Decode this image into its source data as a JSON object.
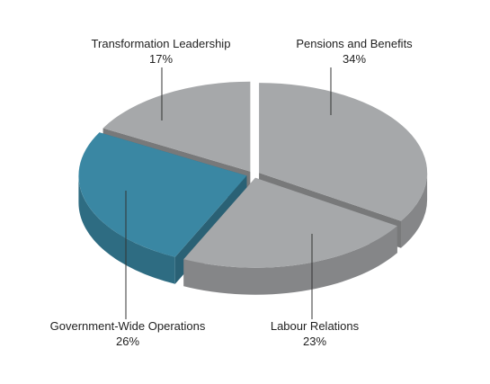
{
  "chart_data": {
    "type": "pie",
    "style": "3d-exploded",
    "categories": [
      "Pensions and Benefits",
      "Labour Relations",
      "Government-Wide Operations",
      "Transformation Leadership"
    ],
    "values": [
      34,
      23,
      26,
      17
    ],
    "value_labels": [
      "34%",
      "23%",
      "26%",
      "17%"
    ],
    "colors": [
      "#a6a8aa",
      "#a6a8aa",
      "#3a87a3",
      "#a6a8aa"
    ],
    "highlighted": "Government-Wide Operations",
    "legend": "none",
    "title": ""
  }
}
